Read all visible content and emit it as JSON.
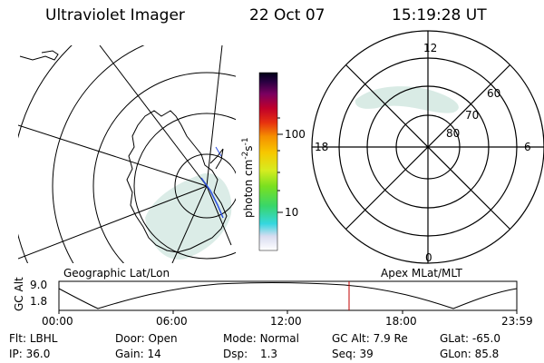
{
  "header": {
    "instrument": "Ultraviolet Imager",
    "date": "22 Oct 07",
    "time": "15:19:28 UT"
  },
  "left_panel": {
    "caption": "Geographic Lat/Lon"
  },
  "right_panel": {
    "caption": "Apex MLat/MLT",
    "mlt_labels": [
      "12",
      "18",
      "6",
      "0"
    ],
    "lat_labels": [
      "60",
      "70",
      "80"
    ]
  },
  "colorbar": {
    "unit": "photon cm",
    "unit_exp1": "-2",
    "unit_mid": "s",
    "unit_exp2": "-1",
    "ticks": [
      "100",
      "10"
    ]
  },
  "altitude_plot": {
    "ylabel": "GC Alt",
    "ticks_y": [
      "9.0",
      "1.8"
    ],
    "ticks_x": [
      "00:00",
      "06:00",
      "12:00",
      "18:00",
      "23:59"
    ],
    "current_time_marker": "15:19:28"
  },
  "footer": {
    "row1": [
      {
        "label": "Flt:",
        "value": "LBHL"
      },
      {
        "label": "Door:",
        "value": "Open"
      },
      {
        "label": "Mode:",
        "value": "Normal"
      },
      {
        "label": "GC Alt:",
        "value": "7.9 Re"
      },
      {
        "label": "GLat:",
        "value": "-65.0"
      }
    ],
    "row2": [
      {
        "label": "IP:",
        "value": "36.0"
      },
      {
        "label": "Gain:",
        "value": "14"
      },
      {
        "label": "Dsp:",
        "value": "1.3"
      },
      {
        "label": "Seq:",
        "value": "39"
      },
      {
        "label": "GLon:",
        "value": "85.8"
      }
    ]
  },
  "colors": {
    "marker": "#c00000",
    "auroral_glow": "#cfe6df",
    "coast": "#000000"
  }
}
